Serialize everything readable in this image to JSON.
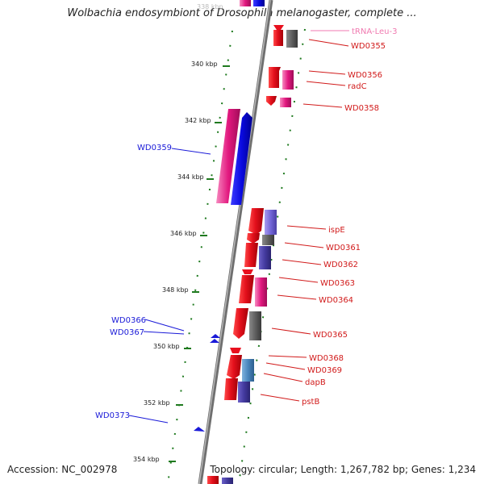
{
  "header": {
    "title": "Wolbachia endosymbiont of Drosophila melanogaster, complete ..."
  },
  "footer": {
    "accession": "Accession: NC_002978",
    "summary": "Topology: circular; Length: 1,267,782 bp; Genes: 1,234"
  },
  "ruler": {
    "labels": [
      "338 kbp",
      "340 kbp",
      "342 kbp",
      "344 kbp",
      "346 kbp",
      "348 kbp",
      "350 kbp",
      "352 kbp",
      "354 kbp"
    ]
  },
  "colors": {
    "backbone": "#8a8a8a",
    "forward_gene": "#e8101e",
    "reverse_label": "#1a1ad8",
    "forward_label": "#d11a1a",
    "trna_label": "#f07ab0",
    "tick": "#1f7a1f"
  },
  "features": {
    "forward_labels": [
      "tRNA-Leu-3",
      "WD0355",
      "WD0356",
      "radC",
      "WD0358",
      "ispE",
      "WD0361",
      "WD0362",
      "WD0363",
      "WD0364",
      "WD0365",
      "WD0368",
      "WD0369",
      "dapB",
      "pstB"
    ],
    "reverse_labels": [
      "WD0359",
      "WD0366",
      "WD0367",
      "WD0373"
    ]
  }
}
